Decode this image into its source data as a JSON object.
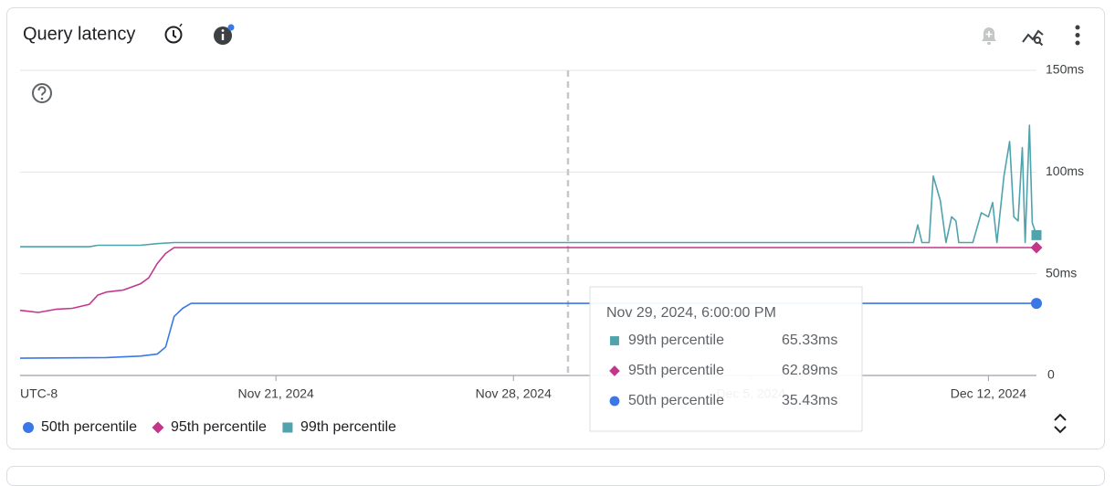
{
  "chart_data": {
    "type": "line",
    "title": "Query latency",
    "timezone": "UTC-8",
    "xlim": [
      "2024-11-13T11:00",
      "2024-12-13T10:00"
    ],
    "xticks": [
      {
        "value": "2024-11-21T00:00",
        "label": "Nov 21, 2024"
      },
      {
        "value": "2024-11-28T00:00",
        "label": "Nov 28, 2024"
      },
      {
        "value": "2024-12-05T00:00",
        "label": "Dec 5, 2024"
      },
      {
        "value": "2024-12-12T00:00",
        "label": "Dec 12, 2024"
      }
    ],
    "ylim": [
      0,
      150
    ],
    "yticks": [
      0,
      {
        "value": 50,
        "label": "50ms"
      },
      {
        "value": 100,
        "label": "100ms"
      },
      {
        "value": 150,
        "label": "150ms"
      }
    ],
    "grid": true,
    "series": [
      {
        "name": "50th percentile",
        "color": "#3b78e7",
        "marker": "circle",
        "x": [
          "2024-11-13T11:00",
          "2024-11-16T00:00",
          "2024-11-17T00:00",
          "2024-11-17T12:00",
          "2024-11-17T18:00",
          "2024-11-18T00:00",
          "2024-11-18T06:00",
          "2024-11-18T12:00",
          "2024-12-13T10:00"
        ],
        "values": [
          8.5,
          8.8,
          9.5,
          10.5,
          14,
          29,
          33,
          35.43,
          35.43
        ]
      },
      {
        "name": "95th percentile",
        "color": "#c2378c",
        "marker": "diamond",
        "x": [
          "2024-11-13T11:00",
          "2024-11-14T00:00",
          "2024-11-14T12:00",
          "2024-11-15T00:00",
          "2024-11-15T12:00",
          "2024-11-15T18:00",
          "2024-11-16T00:00",
          "2024-11-16T12:00",
          "2024-11-17T00:00",
          "2024-11-17T06:00",
          "2024-11-17T12:00",
          "2024-11-17T18:00",
          "2024-11-18T00:00",
          "2024-12-13T10:00"
        ],
        "values": [
          32,
          31,
          32.5,
          33,
          35,
          39.5,
          41,
          42,
          45,
          48,
          55,
          60,
          62.89,
          62.89
        ]
      },
      {
        "name": "99th percentile",
        "color": "#4fa3ad",
        "marker": "square",
        "x": [
          "2024-11-13T11:00",
          "2024-11-15T12:00",
          "2024-11-15T18:00",
          "2024-11-17T00:00",
          "2024-11-17T12:00",
          "2024-11-18T00:00",
          "2024-12-09T19:00",
          "2024-12-09T22:00",
          "2024-12-10T01:00",
          "2024-12-10T06:00",
          "2024-12-10T09:00",
          "2024-12-10T14:00",
          "2024-12-10T18:00",
          "2024-12-10T22:00",
          "2024-12-11T01:00",
          "2024-12-11T03:00",
          "2024-12-11T13:00",
          "2024-12-11T19:00",
          "2024-12-12T00:00",
          "2024-12-12T03:00",
          "2024-12-12T06:00",
          "2024-12-12T11:00",
          "2024-12-12T15:00",
          "2024-12-12T18:00",
          "2024-12-12T21:00",
          "2024-12-13T00:00",
          "2024-12-13T02:00",
          "2024-12-13T05:00",
          "2024-12-13T07:00",
          "2024-12-13T10:00"
        ],
        "values": [
          63.3,
          63.3,
          64,
          64,
          64.8,
          65.33,
          65.33,
          74,
          65.33,
          65.33,
          98,
          86,
          65.33,
          78,
          76,
          65.33,
          65.33,
          80,
          78,
          85,
          65.33,
          98,
          115,
          78,
          76,
          112,
          65.33,
          123,
          75,
          69
        ]
      }
    ],
    "tooltip": {
      "title": "Nov 29, 2024, 6:00:00 PM",
      "values": [
        65.33,
        62.89,
        35.43
      ],
      "value_labels": [
        "65.33ms",
        "62.89ms",
        "35.43ms"
      ]
    }
  }
}
